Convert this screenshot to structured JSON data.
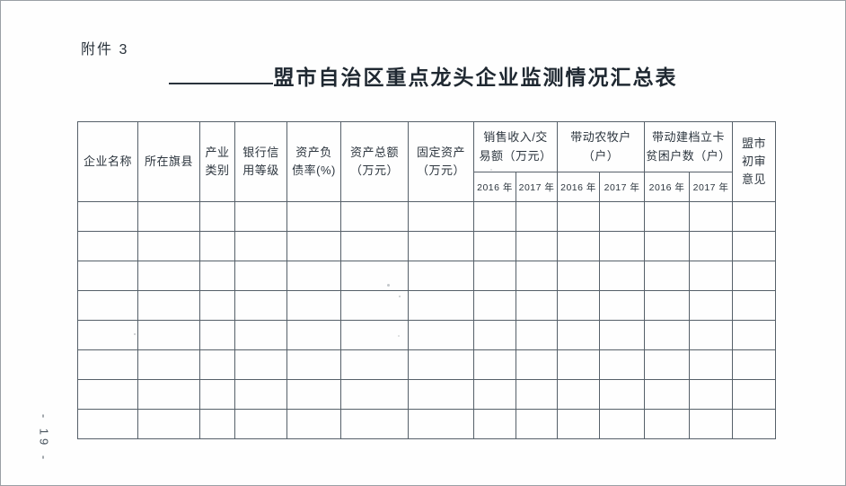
{
  "page": {
    "attachment_label": "附件 3",
    "page_number": "- 19 -"
  },
  "title": {
    "text": "盟市自治区重点龙头企业监测情况汇总表"
  },
  "table": {
    "headers": {
      "enterprise_name": "企业名称",
      "county": "所在旗县",
      "industry_category": "产业\n类别",
      "bank_credit_rating": "银行信\n用等级",
      "debt_ratio": "资产负\n债率(%)",
      "total_assets": "资产总额\n（万元）",
      "fixed_assets": "固定资产\n（万元）",
      "sales_revenue_group": "销售收入/交\n易额（万元）",
      "farm_households_group": "带动农牧户\n（户）",
      "poor_households_group": "带动建档立卡\n贫困户数（户）",
      "review_opinion": "盟市\n初审\n意见"
    },
    "year_headers": [
      "2016 年",
      "2017 年",
      "2016 年",
      "2017 年",
      "2016 年",
      "2017 年"
    ],
    "body_rows": 8,
    "columns_per_row": 14,
    "line_color": "#566069",
    "text_color": "#2d363f"
  }
}
